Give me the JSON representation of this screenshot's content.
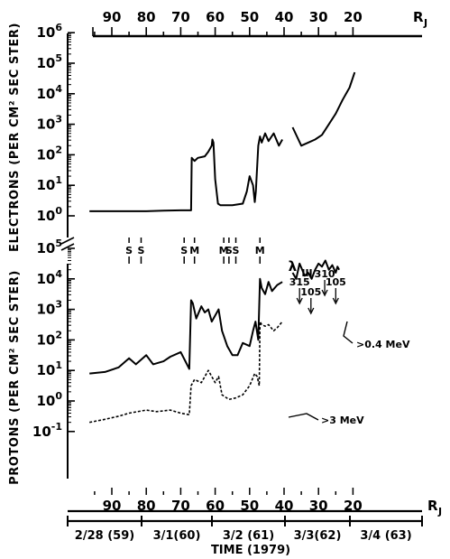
{
  "chart_data": [
    {
      "type": "line",
      "panel": "electrons",
      "ylabel": "ELECTRONS (PER CM² SEC STER)",
      "y_scale": "log",
      "ylim_exponent": [
        0,
        6
      ],
      "y_tick_labels": [
        "10⁰",
        "10¹",
        "10²",
        "10³",
        "10⁴",
        "10⁵",
        "10⁶"
      ],
      "top_axis": {
        "unit_label": "R",
        "unit_sub": "J",
        "tick_labels": [
          "90",
          "80",
          "70",
          "60",
          "50",
          "40",
          "30",
          "20"
        ]
      },
      "series": [
        {
          "style": "solid",
          "x_rj": [
            96.5,
            90,
            85,
            80,
            75,
            70,
            67,
            66.8,
            66,
            65,
            63,
            62,
            61,
            60.8,
            60.5,
            60,
            59.2,
            58.5,
            55,
            52,
            50.8,
            50,
            49,
            48.5,
            48.2,
            47.5,
            47,
            46.5,
            45.5,
            44.5,
            43,
            41.5,
            40.5
          ],
          "y_log10": [
            0.15,
            0.15,
            0.15,
            0.15,
            0.17,
            0.18,
            0.18,
            1.9,
            1.8,
            1.9,
            1.95,
            2.1,
            2.3,
            2.5,
            2.4,
            1.2,
            0.4,
            0.35,
            0.35,
            0.4,
            0.8,
            1.3,
            1.0,
            0.45,
            0.8,
            2.3,
            2.6,
            2.4,
            2.7,
            2.45,
            2.7,
            2.3,
            2.5
          ]
        },
        {
          "style": "solid",
          "x_rj": [
            37.5,
            35,
            33,
            31,
            29,
            27,
            25,
            23,
            21,
            19.5
          ],
          "y_log10": [
            2.9,
            2.3,
            2.4,
            2.5,
            2.65,
            3.0,
            3.35,
            3.8,
            4.2,
            4.7
          ]
        }
      ],
      "encounter_markers": [
        {
          "label": "S",
          "x_rj": 85
        },
        {
          "label": "S",
          "x_rj": 81.5
        },
        {
          "label": "S",
          "x_rj": 69
        },
        {
          "label": "M",
          "x_rj": 66
        },
        {
          "label": "M",
          "x_rj": 57.5
        },
        {
          "label": "S",
          "x_rj": 56
        },
        {
          "label": "S",
          "x_rj": 54
        },
        {
          "label": "M",
          "x_rj": 47
        }
      ]
    },
    {
      "type": "line",
      "panel": "protons",
      "ylabel": "PROTONS (PER CM² SEC STER)",
      "y_scale": "log",
      "ylim_exponent": [
        -1.4,
        5.6
      ],
      "y_tick_labels": [
        "10⁻¹",
        "10⁰",
        "10¹",
        "10²",
        "10³",
        "10⁴",
        "10⁵"
      ],
      "bottom_axis": {
        "unit_label": "R",
        "unit_sub": "J",
        "tick_labels": [
          "90",
          "80",
          "70",
          "60",
          "50",
          "40",
          "30",
          "20"
        ],
        "date_labels": [
          "2/28 (59)",
          "3/1(60)",
          "3/2 (61)",
          "3/3(62)",
          "3/4 (63)"
        ],
        "title": "TIME (1979)"
      },
      "series": [
        {
          "name": ">0.4 MeV",
          "style": "solid",
          "x_rj": [
            96.5,
            92,
            88,
            85,
            83,
            80,
            78,
            75,
            73,
            70,
            67.5,
            67,
            66.5,
            65.5,
            64,
            63,
            62,
            61,
            59,
            58,
            56.5,
            55,
            53.5,
            52,
            50,
            49,
            48.3,
            47.5,
            47,
            46.5,
            45.5,
            44.5,
            43.5,
            42,
            40.5
          ],
          "y_log10": [
            0.9,
            0.95,
            1.1,
            1.4,
            1.2,
            1.5,
            1.2,
            1.3,
            1.45,
            1.6,
            1.05,
            3.3,
            3.2,
            2.7,
            3.1,
            2.9,
            3.0,
            2.6,
            3.0,
            2.3,
            1.8,
            1.5,
            1.5,
            1.9,
            1.8,
            2.3,
            2.6,
            2.0,
            4.0,
            3.7,
            3.5,
            3.9,
            3.6,
            3.8,
            3.9
          ]
        },
        {
          "name": ">3 MeV",
          "style": "dashed",
          "x_rj": [
            96.5,
            92,
            88,
            85,
            80,
            77,
            73,
            70,
            67.5,
            67,
            66,
            64,
            62,
            60,
            59,
            58,
            56,
            54,
            52,
            50,
            48.5,
            47.8,
            47.2,
            47,
            46.5,
            45.5,
            44.5,
            43,
            42,
            40.5
          ],
          "y_log10": [
            -0.7,
            -0.6,
            -0.5,
            -0.4,
            -0.3,
            -0.35,
            -0.3,
            -0.4,
            -0.45,
            0.5,
            0.7,
            0.6,
            1.0,
            0.6,
            0.8,
            0.2,
            0.05,
            0.1,
            0.2,
            0.5,
            0.9,
            0.8,
            0.5,
            2.6,
            2.5,
            2.45,
            2.5,
            2.3,
            2.4,
            2.6
          ]
        },
        {
          "style": "solid",
          "x_rj": [
            37.5,
            36.5,
            35.5,
            34,
            33,
            32,
            31,
            30,
            29,
            28,
            27,
            26,
            25,
            24.5,
            24
          ],
          "y_log10": [
            4.2,
            4.0,
            4.5,
            4.1,
            4.2,
            4.0,
            4.3,
            4.5,
            4.4,
            4.6,
            4.3,
            4.45,
            4.2,
            4.4,
            4.3
          ]
        }
      ],
      "lambda_annotation": {
        "label": "λ",
        "subscript": "III",
        "markers": [
          {
            "value": "315",
            "x_rj": 35.5
          },
          {
            "value": "105",
            "x_rj": 32.2
          },
          {
            "value": "310",
            "x_rj": 28.2
          },
          {
            "value": "105",
            "x_rj": 25
          }
        ]
      }
    }
  ]
}
